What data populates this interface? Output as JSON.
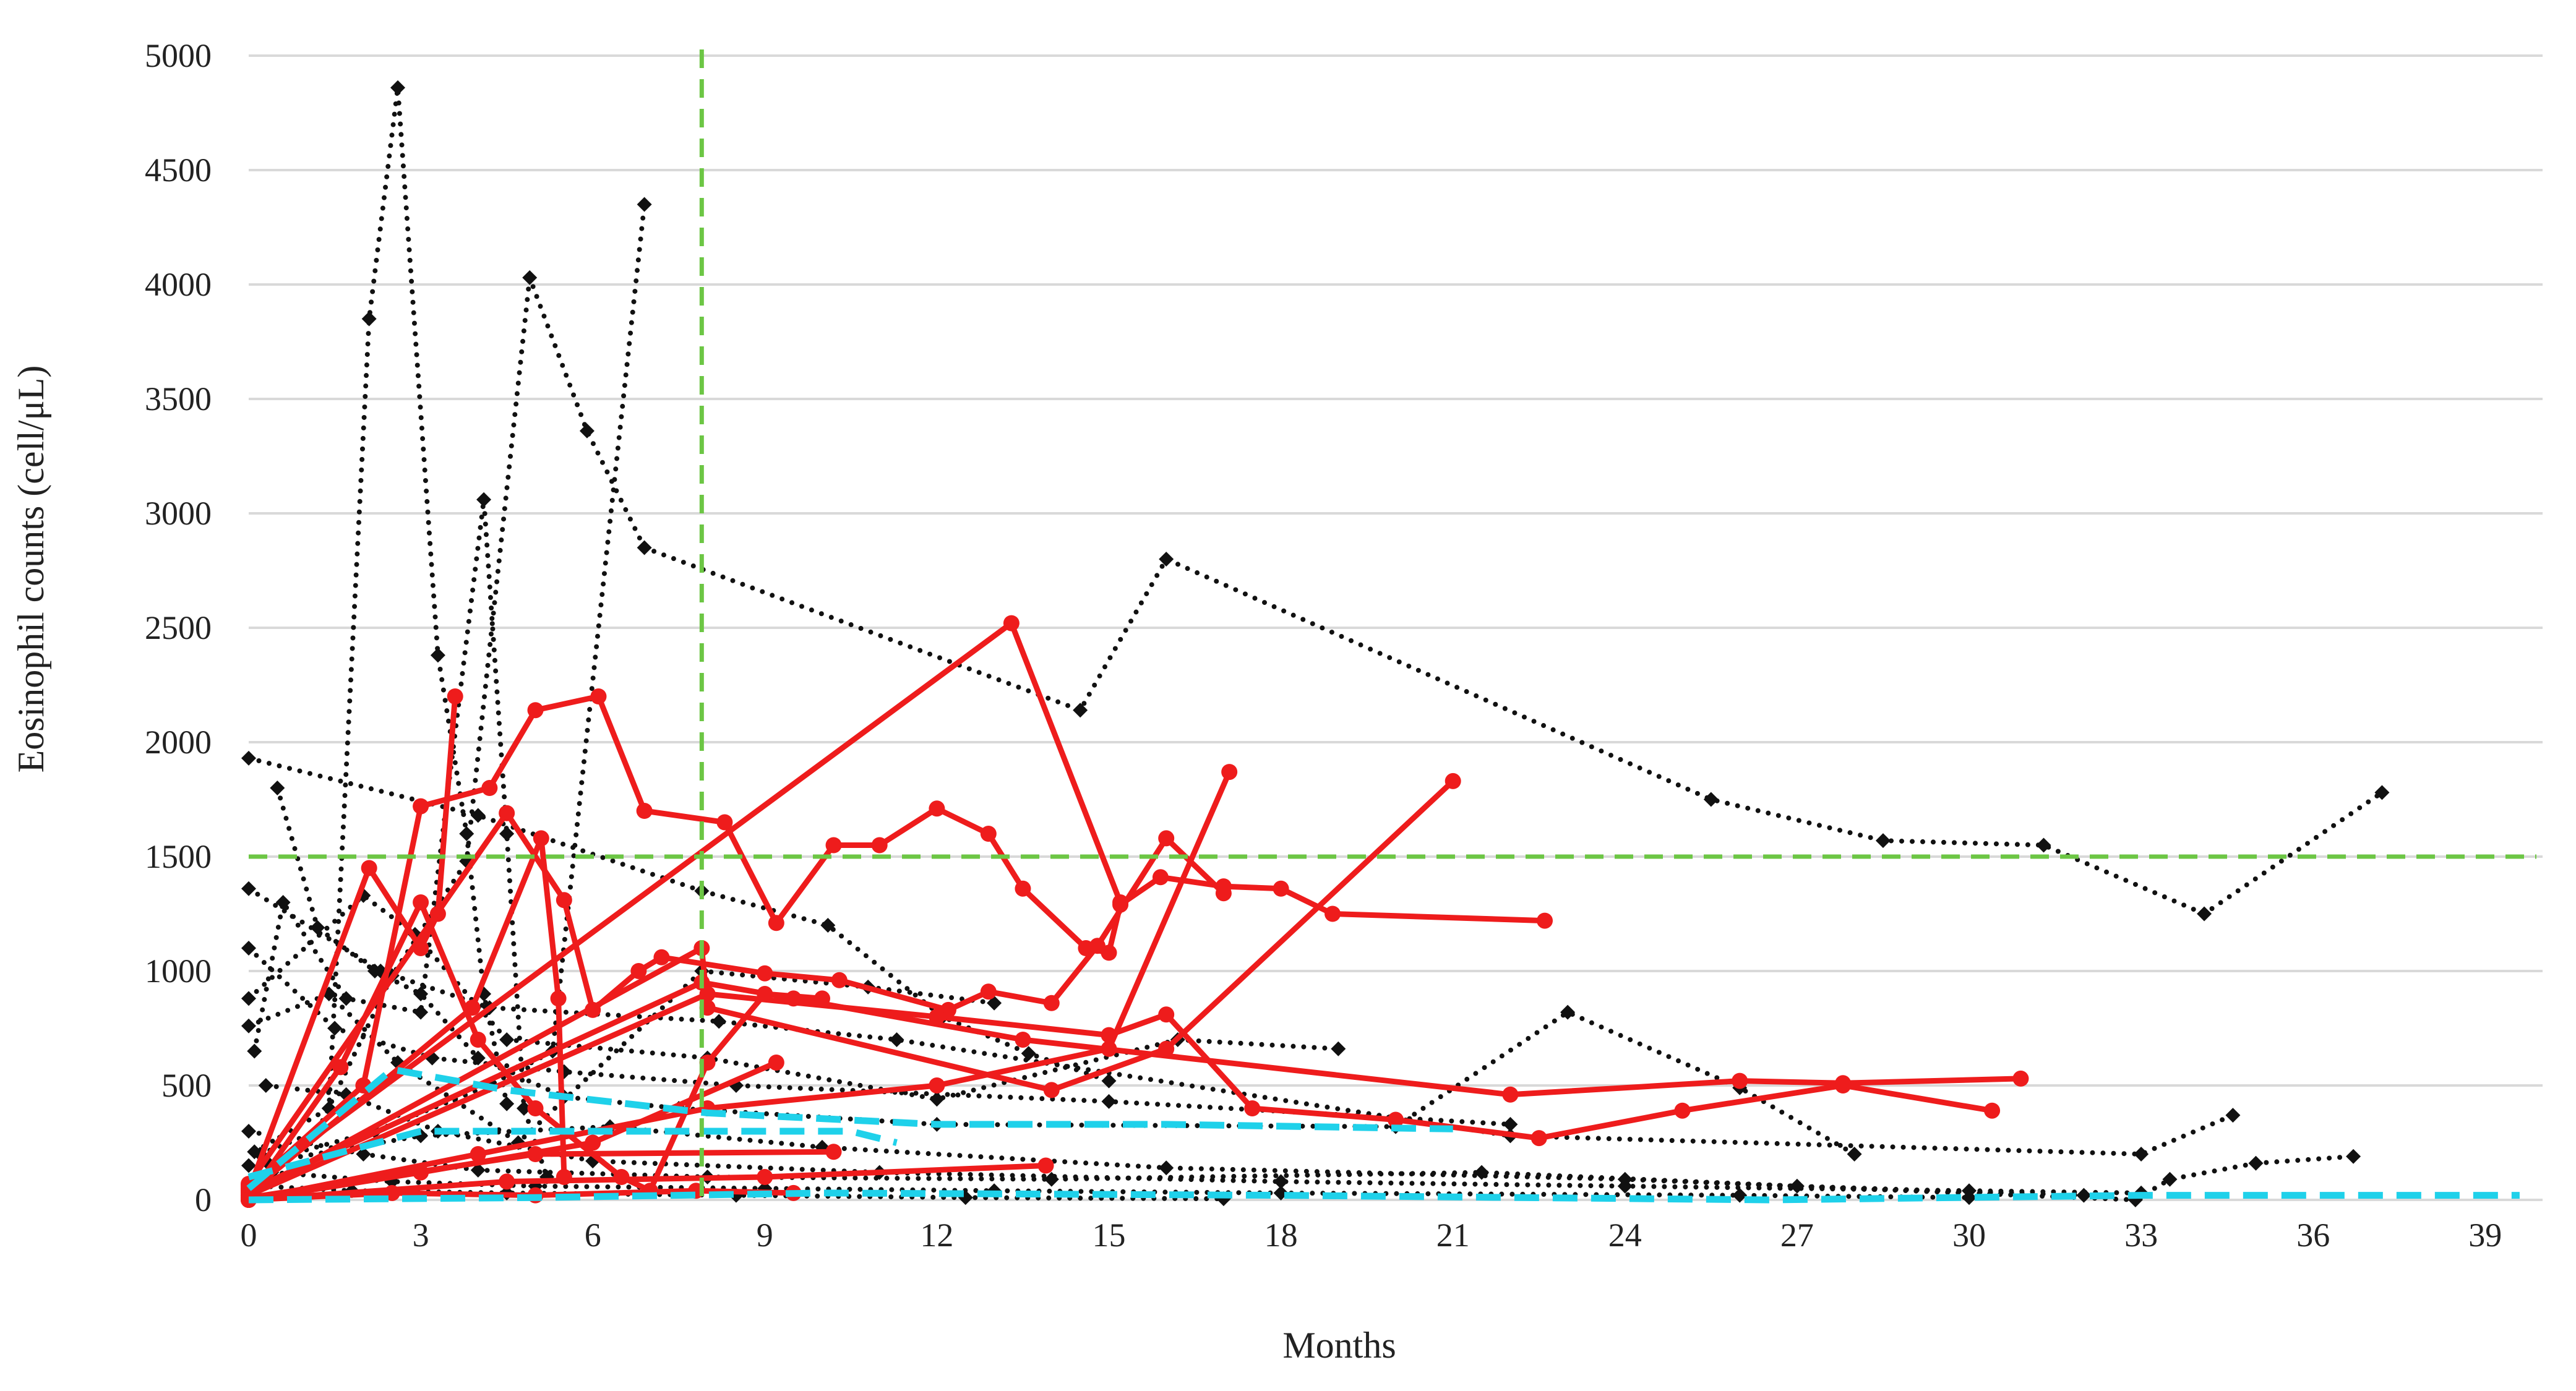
{
  "chart_data": {
    "type": "line",
    "title": "",
    "xlabel": "Months",
    "ylabel": "Eosinophil counts (cell/μL)",
    "xlim": [
      0,
      40
    ],
    "ylim": [
      0,
      5000
    ],
    "x_ticks": [
      "0",
      "3",
      "6",
      "9",
      "12",
      "15",
      "18",
      "21",
      "24",
      "27",
      "30",
      "33",
      "36",
      "39"
    ],
    "y_ticks": [
      "0",
      "500",
      "1000",
      "1500",
      "2000",
      "2500",
      "3000",
      "3500",
      "4000",
      "4500",
      "5000"
    ],
    "grid": "horizontal",
    "legend": "none",
    "colors": {
      "highlighted": "#ee1c1c",
      "other": "#111111",
      "threshold": "#6cc644",
      "mean_trend": "#1fd1ea",
      "grid": "#d9d9d9"
    },
    "reference_lines": [
      {
        "orientation": "vertical",
        "x": 7.9,
        "style": "dashed",
        "color": "#6cc644"
      },
      {
        "orientation": "horizontal",
        "y": 1500,
        "style": "dashed",
        "color": "#6cc644"
      }
    ],
    "series": [
      {
        "style": "dotted",
        "marker": "diamond",
        "color": "#111111",
        "points": [
          [
            0.1,
            210
          ],
          [
            1.4,
            400
          ],
          [
            2.1,
            3850
          ],
          [
            2.6,
            4860
          ],
          [
            3.3,
            2380
          ],
          [
            3.8,
            1600
          ],
          [
            4.1,
            900
          ],
          [
            4.5,
            420
          ]
        ]
      },
      {
        "style": "dotted",
        "marker": "diamond",
        "color": "#111111",
        "points": [
          [
            0.1,
            650
          ],
          [
            0.6,
            1300
          ],
          [
            1.7,
            880
          ],
          [
            3.0,
            820
          ],
          [
            4.1,
            3060
          ],
          [
            4.5,
            1600
          ],
          [
            4.8,
            400
          ],
          [
            5.2,
            100
          ]
        ]
      },
      {
        "style": "dotted",
        "marker": "diamond",
        "color": "#111111",
        "points": [
          [
            0.2,
            200
          ],
          [
            1.2,
            300
          ],
          [
            2.5,
            980
          ],
          [
            3.8,
            1480
          ],
          [
            4.9,
            4030
          ],
          [
            5.9,
            3360
          ],
          [
            6.9,
            2850
          ],
          [
            14.5,
            2140
          ],
          [
            16.0,
            2800
          ],
          [
            25.5,
            1750
          ],
          [
            28.5,
            1570
          ],
          [
            31.3,
            1550
          ],
          [
            34.1,
            1250
          ],
          [
            37.2,
            1780
          ]
        ]
      },
      {
        "style": "dotted",
        "marker": "diamond",
        "color": "#111111",
        "points": [
          [
            0.3,
            170
          ],
          [
            2.2,
            300
          ],
          [
            4.2,
            500
          ],
          [
            5.3,
            650
          ],
          [
            6.9,
            4350
          ]
        ]
      },
      {
        "style": "dotted",
        "marker": "diamond",
        "color": "#111111",
        "points": [
          [
            0.5,
            1800
          ],
          [
            1.2,
            1190
          ],
          [
            2.2,
            1000
          ],
          [
            3.0,
            900
          ],
          [
            4.0,
            620
          ],
          [
            5.5,
            450
          ],
          [
            7.5,
            400
          ],
          [
            12.0,
            330
          ],
          [
            20.0,
            320
          ],
          [
            23.0,
            820
          ],
          [
            26.0,
            490
          ],
          [
            28.0,
            200
          ]
        ]
      },
      {
        "style": "dotted",
        "marker": "diamond",
        "color": "#111111",
        "points": [
          [
            0,
            1930
          ],
          [
            4.0,
            1680
          ],
          [
            7.9,
            1350
          ],
          [
            10.1,
            1200
          ],
          [
            12.1,
            800
          ],
          [
            13.6,
            640
          ],
          [
            15.0,
            520
          ]
        ]
      },
      {
        "style": "dotted",
        "marker": "diamond",
        "color": "#111111",
        "points": [
          [
            0,
            1360
          ],
          [
            2.3,
            1000
          ],
          [
            4.2,
            840
          ],
          [
            8.2,
            780
          ],
          [
            11.3,
            700
          ],
          [
            22.0,
            280
          ],
          [
            33.0,
            200
          ],
          [
            34.6,
            370
          ]
        ]
      },
      {
        "style": "dotted",
        "marker": "diamond",
        "color": "#111111",
        "points": [
          [
            0,
            1100
          ],
          [
            1.5,
            750
          ],
          [
            3.2,
            620
          ],
          [
            5.5,
            560
          ],
          [
            8.5,
            500
          ],
          [
            15.0,
            430
          ],
          [
            22.0,
            330
          ]
        ]
      },
      {
        "style": "dotted",
        "marker": "diamond",
        "color": "#111111",
        "points": [
          [
            0,
            880
          ],
          [
            2.0,
            1330
          ],
          [
            2.9,
            1160
          ],
          [
            4.5,
            700
          ],
          [
            8.0,
            620
          ],
          [
            12.0,
            440
          ],
          [
            16.2,
            700
          ],
          [
            19.0,
            660
          ]
        ]
      },
      {
        "style": "dotted",
        "marker": "diamond",
        "color": "#111111",
        "points": [
          [
            0,
            760
          ],
          [
            1.4,
            900
          ],
          [
            2.6,
            600
          ],
          [
            4.7,
            250
          ],
          [
            7.9,
            1000
          ],
          [
            10.8,
            930
          ],
          [
            13.0,
            860
          ]
        ]
      },
      {
        "style": "dotted",
        "marker": "diamond",
        "color": "#111111",
        "points": [
          [
            0.3,
            500
          ],
          [
            1.7,
            460
          ],
          [
            3.3,
            300
          ],
          [
            6.0,
            170
          ],
          [
            11.0,
            120
          ],
          [
            18.0,
            80
          ],
          [
            24.0,
            60
          ],
          [
            30.0,
            40
          ],
          [
            33.0,
            30
          ]
        ]
      },
      {
        "style": "dotted",
        "marker": "diamond",
        "color": "#111111",
        "points": [
          [
            0,
            300
          ],
          [
            2.0,
            200
          ],
          [
            4.0,
            130
          ],
          [
            8.0,
            100
          ],
          [
            14.0,
            90
          ],
          [
            21.5,
            120
          ],
          [
            27.0,
            60
          ],
          [
            32.0,
            20
          ]
        ]
      },
      {
        "style": "dotted",
        "marker": "diamond",
        "color": "#111111",
        "points": [
          [
            0,
            150
          ],
          [
            3.0,
            280
          ],
          [
            6.3,
            320
          ],
          [
            10.0,
            230
          ],
          [
            16.0,
            140
          ],
          [
            24.0,
            90
          ],
          [
            32.9,
            0
          ],
          [
            33.5,
            90
          ],
          [
            35.0,
            160
          ],
          [
            36.7,
            190
          ]
        ]
      },
      {
        "style": "dotted",
        "marker": "diamond",
        "color": "#111111",
        "points": [
          [
            0.4,
            120
          ],
          [
            2.5,
            80
          ],
          [
            5.0,
            60
          ],
          [
            9.0,
            50
          ],
          [
            13.0,
            40
          ],
          [
            18.0,
            30
          ],
          [
            26.0,
            20
          ],
          [
            30.0,
            10
          ]
        ]
      },
      {
        "style": "dotted",
        "marker": "diamond",
        "color": "#111111",
        "points": [
          [
            0.2,
            60
          ],
          [
            1.8,
            40
          ],
          [
            4.5,
            30
          ],
          [
            8.5,
            20
          ],
          [
            12.5,
            10
          ],
          [
            17.0,
            5
          ]
        ]
      },
      {
        "style": "solid",
        "marker": "circle",
        "color": "#ee1c1c",
        "points": [
          [
            0,
            40
          ],
          [
            2.1,
            1450
          ],
          [
            3.0,
            1100
          ],
          [
            3.3,
            1250
          ],
          [
            3.6,
            2200
          ]
        ]
      },
      {
        "style": "solid",
        "marker": "circle",
        "color": "#ee1c1c",
        "points": [
          [
            0,
            50
          ],
          [
            2.0,
            500
          ],
          [
            3.0,
            1720
          ],
          [
            4.2,
            1800
          ],
          [
            5.0,
            2140
          ],
          [
            6.1,
            2200
          ],
          [
            6.9,
            1700
          ],
          [
            8.3,
            1650
          ],
          [
            9.2,
            1210
          ],
          [
            10.2,
            1550
          ],
          [
            11.0,
            1550
          ],
          [
            12.0,
            1710
          ],
          [
            12.9,
            1600
          ],
          [
            13.5,
            1360
          ],
          [
            14.6,
            1100
          ],
          [
            15.0,
            1080
          ],
          [
            15.2,
            1290
          ],
          [
            15.9,
            1410
          ],
          [
            17.0,
            1370
          ],
          [
            18.0,
            1360
          ],
          [
            18.9,
            1250
          ],
          [
            22.6,
            1220
          ]
        ]
      },
      {
        "style": "solid",
        "marker": "circle",
        "color": "#ee1c1c",
        "points": [
          [
            0,
            70
          ],
          [
            4.5,
            1690
          ],
          [
            5.5,
            1310
          ],
          [
            6.0,
            830
          ],
          [
            6.8,
            1000
          ],
          [
            7.2,
            1060
          ],
          [
            9.0,
            990
          ],
          [
            10.3,
            960
          ],
          [
            12.2,
            830
          ],
          [
            12.9,
            910
          ],
          [
            14.0,
            860
          ],
          [
            14.8,
            1110
          ],
          [
            16.0,
            1580
          ],
          [
            17.0,
            1340
          ]
        ]
      },
      {
        "style": "solid",
        "marker": "circle",
        "color": "#ee1c1c",
        "points": [
          [
            0,
            30
          ],
          [
            3.9,
            840
          ],
          [
            5.1,
            1580
          ],
          [
            5.4,
            880
          ],
          [
            5.5,
            100
          ]
        ]
      },
      {
        "style": "solid",
        "marker": "circle",
        "color": "#ee1c1c",
        "points": [
          [
            0,
            20
          ],
          [
            7.9,
            1100
          ],
          [
            8.0,
            840
          ],
          [
            14.0,
            480
          ],
          [
            16.0,
            660
          ],
          [
            21.0,
            1830
          ]
        ]
      },
      {
        "style": "solid",
        "marker": "circle",
        "color": "#ee1c1c",
        "points": [
          [
            0,
            60
          ],
          [
            13.3,
            2520
          ],
          [
            15.2,
            1300
          ]
        ]
      },
      {
        "style": "solid",
        "marker": "circle",
        "color": "#ee1c1c",
        "points": [
          [
            0,
            40
          ],
          [
            7.9,
            950
          ],
          [
            9.5,
            880
          ],
          [
            13.5,
            700
          ],
          [
            22.0,
            460
          ],
          [
            26.0,
            520
          ],
          [
            27.8,
            510
          ],
          [
            30.9,
            530
          ]
        ]
      },
      {
        "style": "solid",
        "marker": "circle",
        "color": "#ee1c1c",
        "points": [
          [
            0,
            20
          ],
          [
            8.0,
            900
          ],
          [
            12.0,
            800
          ],
          [
            15.0,
            720
          ],
          [
            16.0,
            810
          ],
          [
            17.5,
            400
          ],
          [
            20.0,
            350
          ],
          [
            22.5,
            270
          ],
          [
            25.0,
            390
          ],
          [
            27.8,
            500
          ],
          [
            30.4,
            390
          ]
        ]
      },
      {
        "style": "solid",
        "marker": "circle",
        "color": "#ee1c1c",
        "points": [
          [
            0,
            10
          ],
          [
            1.6,
            580
          ],
          [
            3.0,
            1300
          ],
          [
            4.0,
            700
          ],
          [
            5.0,
            400
          ],
          [
            6.5,
            100
          ],
          [
            7.0,
            40
          ],
          [
            8.0,
            600
          ],
          [
            9.0,
            900
          ],
          [
            10.0,
            880
          ]
        ]
      },
      {
        "style": "solid",
        "marker": "circle",
        "color": "#ee1c1c",
        "points": [
          [
            0,
            0
          ],
          [
            4.0,
            200
          ],
          [
            8.0,
            400
          ],
          [
            12.0,
            500
          ],
          [
            15.0,
            660
          ],
          [
            17.1,
            1870
          ]
        ]
      },
      {
        "style": "solid",
        "marker": "circle",
        "color": "#ee1c1c",
        "points": [
          [
            0,
            0
          ],
          [
            3.0,
            120
          ],
          [
            6.0,
            250
          ],
          [
            9.2,
            600
          ]
        ]
      },
      {
        "style": "solid",
        "marker": "circle",
        "color": "#ee1c1c",
        "points": [
          [
            0,
            10
          ],
          [
            5.0,
            200
          ],
          [
            10.2,
            210
          ]
        ]
      },
      {
        "style": "solid",
        "marker": "circle",
        "color": "#ee1c1c",
        "points": [
          [
            0,
            0
          ],
          [
            4.5,
            80
          ],
          [
            9.0,
            100
          ],
          [
            13.9,
            150
          ]
        ]
      },
      {
        "style": "solid",
        "marker": "circle",
        "color": "#ee1c1c",
        "points": [
          [
            0,
            0
          ],
          [
            2.5,
            30
          ],
          [
            5.0,
            20
          ],
          [
            7.8,
            40
          ],
          [
            9.5,
            30
          ]
        ]
      },
      {
        "style": "dashed",
        "marker": "none",
        "color": "#1fd1ea",
        "points": [
          [
            0,
            50
          ],
          [
            2.5,
            570
          ],
          [
            4.5,
            480
          ],
          [
            8.0,
            380
          ],
          [
            12.0,
            330
          ],
          [
            16.0,
            330
          ],
          [
            21.0,
            310
          ]
        ]
      },
      {
        "style": "dashed",
        "marker": "none",
        "color": "#1fd1ea",
        "points": [
          [
            0,
            100
          ],
          [
            3.0,
            300
          ],
          [
            8.0,
            300
          ],
          [
            10.5,
            300
          ],
          [
            11.3,
            250
          ]
        ]
      },
      {
        "style": "dashed",
        "marker": "none",
        "color": "#1fd1ea",
        "points": [
          [
            0,
            0
          ],
          [
            5.0,
            10
          ],
          [
            10.0,
            30
          ],
          [
            18.0,
            20
          ],
          [
            26.5,
            0
          ],
          [
            33.0,
            20
          ],
          [
            39.6,
            20
          ]
        ]
      }
    ]
  }
}
